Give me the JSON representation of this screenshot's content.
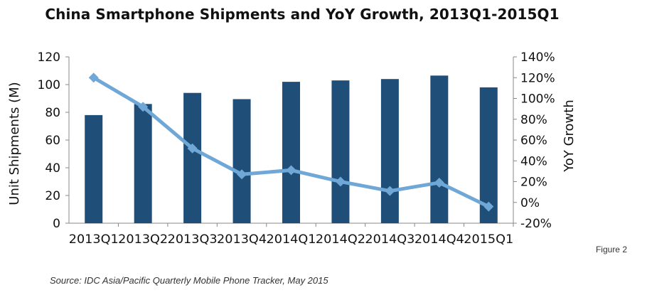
{
  "figure_label": "Figure 2",
  "source": "Source: IDC Asia/Pacific Quarterly Mobile Phone Tracker, May 2015",
  "colors": {
    "bars": "#1f4e79",
    "line": "#6fa8d6",
    "axis": "#888888"
  },
  "chart_data": {
    "type": "bar",
    "title": "China Smartphone Shipments and YoY Growth, 2013Q1-2015Q1",
    "categories": [
      "2013Q1",
      "2013Q2",
      "2013Q3",
      "2013Q4",
      "2014Q1",
      "2014Q2",
      "2014Q3",
      "2014Q4",
      "2015Q1"
    ],
    "ylabel": "Unit Shipments (M)",
    "y2label": "YoY Growth",
    "ylim": [
      0,
      120
    ],
    "yticks": [
      "0",
      "20",
      "40",
      "60",
      "80",
      "100",
      "120"
    ],
    "y2lim": [
      -20,
      140
    ],
    "y2ticks": [
      "-20%",
      "0%",
      "20%",
      "40%",
      "60%",
      "80%",
      "100%",
      "120%",
      "140%"
    ],
    "series": [
      {
        "name": "Unit Shipments (M)",
        "type": "bar",
        "axis": "left",
        "values": [
          78,
          86,
          94,
          89.5,
          102,
          103,
          104,
          106.5,
          98
        ]
      },
      {
        "name": "YoY Growth",
        "type": "line",
        "axis": "right",
        "values": [
          120,
          92,
          52,
          27,
          31,
          20,
          11,
          19,
          -4
        ]
      }
    ],
    "grid": false
  }
}
